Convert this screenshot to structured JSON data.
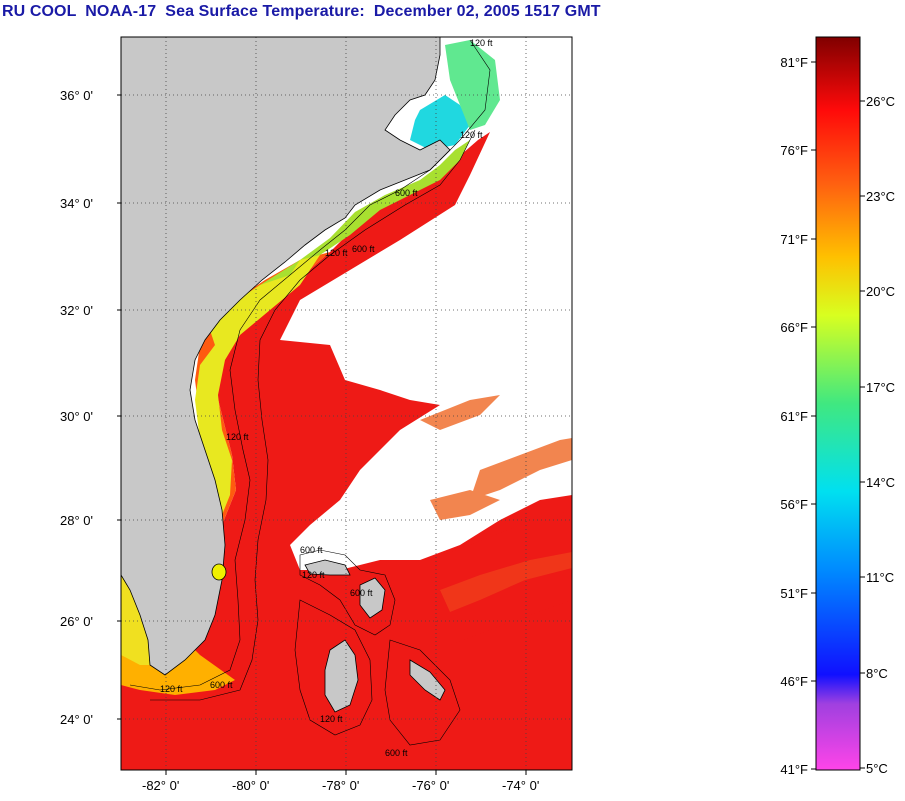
{
  "title": "RU COOL  NOAA-17  Sea Surface Temperature:  December 02, 2005 1517 GMT",
  "map": {
    "lat_labels": [
      "36° 0'",
      "34° 0'",
      "32° 0'",
      "30° 0'",
      "28° 0'",
      "26° 0'",
      "24° 0'"
    ],
    "lon_labels": [
      "-82° 0'",
      "-80° 0'",
      "-78° 0'",
      "-76° 0'",
      "-74° 0'"
    ],
    "lat_range": [
      23.0,
      37.0
    ],
    "lon_range": [
      -83.0,
      -73.0
    ],
    "contour_labels": [
      "120 ft",
      "120 ft",
      "600 ft",
      "120 ft",
      "600 ft",
      "120 ft",
      "600 ft",
      "120 ft",
      "600 ft",
      "120 ft",
      "600 ft",
      "120 ft",
      "600 ft"
    ],
    "colors": {
      "land": "#c8c8c8",
      "no_data": "#ffffff",
      "warm_water": "#f01414"
    }
  },
  "colorbar": {
    "fahrenheit_labels": [
      "81°F",
      "76°F",
      "71°F",
      "66°F",
      "61°F",
      "56°F",
      "51°F",
      "46°F",
      "41°F"
    ],
    "celsius_labels": [
      "26°C",
      "23°C",
      "20°C",
      "17°C",
      "14°C",
      "11°C",
      "8°C",
      "5°C"
    ],
    "range_f": [
      41,
      83
    ],
    "range_c": [
      5,
      28.3
    ]
  }
}
